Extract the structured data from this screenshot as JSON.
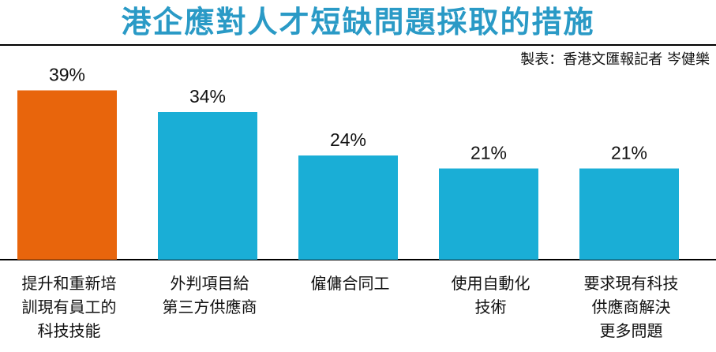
{
  "header": {
    "title": "港企應對人才短缺問題採取的措施",
    "credit": "製表：香港文匯報記者 岑健樂"
  },
  "chart_data": {
    "type": "bar",
    "categories": [
      "提升和重新培\n訓現有員工的\n科技技能",
      "外判項目給\n第三方供應商",
      "僱傭合同工",
      "使用自動化\n技術",
      "要求現有科技\n供應商解決\n更多問題"
    ],
    "values": [
      39,
      34,
      24,
      21,
      21
    ],
    "value_labels": [
      "39%",
      "34%",
      "24%",
      "21%",
      "21%"
    ],
    "unit": "%",
    "ylim": [
      0,
      40
    ],
    "grid": false,
    "legend": "none",
    "colors": {
      "highlight": "#e8650c",
      "default": "#1aaed6",
      "title": "#2a9ac6",
      "axis": "#000000"
    },
    "highlight_index": 0
  }
}
